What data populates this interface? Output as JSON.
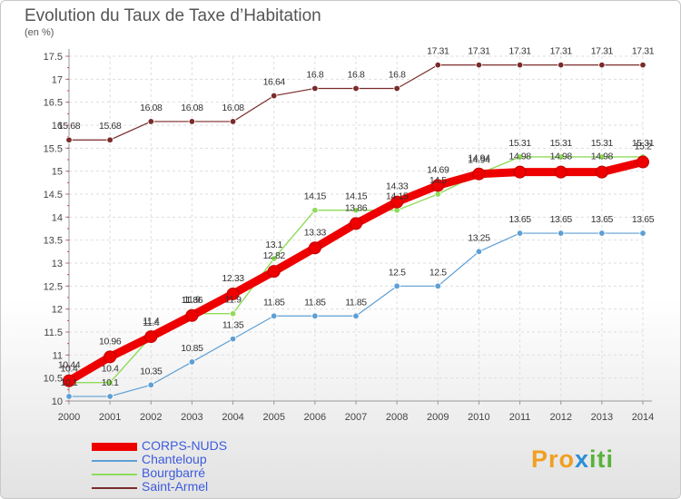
{
  "chart_data": {
    "type": "line",
    "title": "Evolution du Taux de Taxe d’Habitation",
    "subtitle": "(en %)",
    "x": [
      "2000",
      "2001",
      "2002",
      "2003",
      "2004",
      "2005",
      "2006",
      "2007",
      "2008",
      "2009",
      "2010",
      "2011",
      "2012",
      "2013",
      "2014"
    ],
    "ylim": [
      10,
      17.5
    ],
    "yticks": [
      "10",
      "10.5",
      "11",
      "11.5",
      "12",
      "12.5",
      "13",
      "13.5",
      "14",
      "14.5",
      "15",
      "15.5",
      "16",
      "16.5",
      "17",
      "17.5"
    ],
    "grid": true,
    "legend_position": "bottom-left",
    "series": [
      {
        "name": "CORPS-NUDS",
        "color": "#ee0000",
        "width": 9,
        "values": [
          10.44,
          10.96,
          11.4,
          11.86,
          12.33,
          12.82,
          13.33,
          13.86,
          14.33,
          14.69,
          14.94,
          14.98,
          14.98,
          14.98,
          15.2
        ],
        "labels": [
          "10.44",
          "10.96",
          "11.4",
          "11.86",
          "12.33",
          "12.82",
          "13.33",
          "13.86",
          "14.33",
          "14.69",
          "14.94",
          "14.98",
          "14.98",
          "14.98",
          "15.2"
        ]
      },
      {
        "name": "Chanteloup",
        "color": "#5f9fd4",
        "width": 1.2,
        "values": [
          10.1,
          10.1,
          10.35,
          10.85,
          11.35,
          11.85,
          11.85,
          11.85,
          12.5,
          12.5,
          13.25,
          13.65,
          13.65,
          13.65,
          13.65
        ],
        "labels": [
          "10.1",
          "10.1",
          "10.35",
          "10.85",
          "11.35",
          "11.85",
          "11.85",
          "11.85",
          "12.5",
          "12.5",
          "13.25",
          "13.65",
          "13.65",
          "13.65",
          "13.65"
        ]
      },
      {
        "name": "Bourgbarré",
        "color": "#8fdc5a",
        "width": 1.4,
        "values": [
          10.4,
          10.4,
          11.4,
          11.9,
          11.9,
          13.1,
          14.15,
          14.15,
          14.15,
          14.5,
          14.94,
          15.31,
          15.31,
          15.31,
          15.31
        ],
        "labels": [
          "10.4",
          "10.4",
          "11.4",
          "11.9",
          "11.9",
          "13.1",
          "14.15",
          "14.15",
          "14.15",
          "14.5",
          "14.94",
          "15.31",
          "15.31",
          "15.31",
          "15.31"
        ]
      },
      {
        "name": "Saint-Armel",
        "color": "#7a2a2a",
        "width": 1.2,
        "values": [
          15.68,
          15.68,
          16.08,
          16.08,
          16.08,
          16.64,
          16.8,
          16.8,
          16.8,
          17.31,
          17.31,
          17.31,
          17.31,
          17.31,
          17.31
        ],
        "labels": [
          "15.68",
          "15.68",
          "16.08",
          "16.08",
          "16.08",
          "16.64",
          "16.8",
          "16.8",
          "16.8",
          "17.31",
          "17.31",
          "17.31",
          "17.31",
          "17.31",
          "17.31"
        ]
      }
    ]
  },
  "logo": {
    "part1": "Pro",
    "part2": "x",
    "part3": "iti"
  }
}
